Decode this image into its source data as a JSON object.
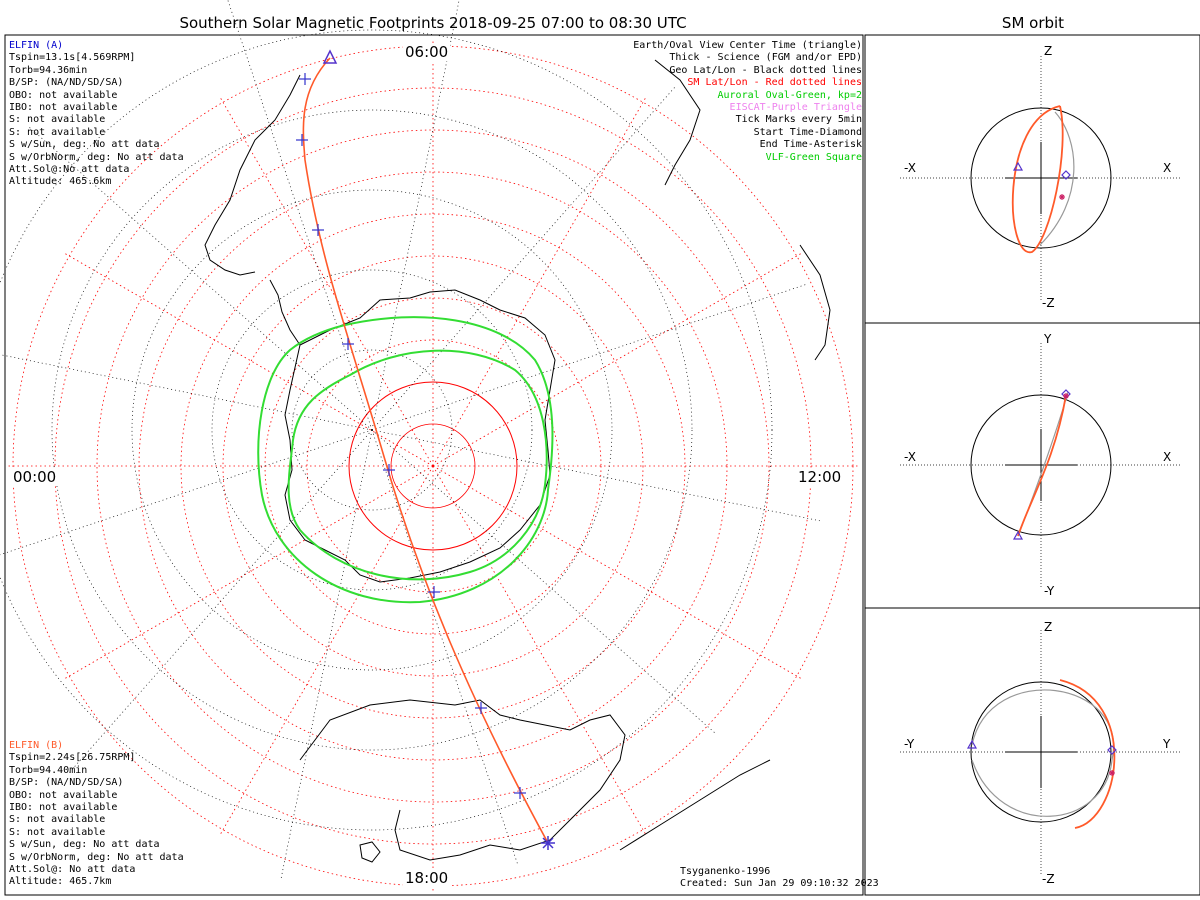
{
  "title": "Southern Solar Magnetic Footprints 2018-09-25 07:00 to 08:30 UTC",
  "orbit_title": "SM orbit",
  "clock_labels": {
    "top": "06:00",
    "left": "00:00",
    "right": "12:00",
    "bottom": "18:00"
  },
  "spacecraft_a": {
    "name": "ELFIN (A)",
    "color": "#0000cc",
    "lines": [
      "Tspin=13.1s[4.569RPM]",
      "Torb=94.36min",
      "B/SP: (NA/ND/SD/SA)",
      "OBO: not available",
      "IBO: not available",
      "S: not available",
      "S: not available",
      "S w/Sun, deg: No att data",
      "S w/OrbNorm, deg: No att data",
      "Att.Sol@:No att data",
      "Altitude: 465.6km"
    ]
  },
  "spacecraft_b": {
    "name": "ELFIN (B)",
    "color": "#ff5a2a",
    "lines": [
      "Tspin=2.24s[26.75RPM]",
      "Torb=94.40min",
      "B/SP: (NA/ND/SD/SA)",
      "OBO: not available",
      "IBO: not available",
      "S: not available",
      "S: not available",
      "S w/Sun, deg: No att data",
      "S w/OrbNorm, deg: No att data",
      "Att.Sol@: No att data",
      "Altitude: 465.7km"
    ]
  },
  "legend": [
    {
      "text": "Earth/Oval View Center Time (triangle)",
      "color": "#000000"
    },
    {
      "text": "Thick - Science (FGM and/or EPD)",
      "color": "#000000"
    },
    {
      "text": "Geo Lat/Lon - Black dotted lines",
      "color": "#000000"
    },
    {
      "text": "SM Lat/Lon - Red dotted lines",
      "color": "#ff0000"
    },
    {
      "text": "Auroral Oval-Green, kp=2",
      "color": "#00cc00"
    },
    {
      "text": "EISCAT-Purple Triangle",
      "color": "#ee82ee"
    },
    {
      "text": "Tick Marks every 5min",
      "color": "#000000"
    },
    {
      "text": "Start Time-Diamond",
      "color": "#000000"
    },
    {
      "text": "End Time-Asterisk",
      "color": "#000000"
    },
    {
      "text": "VLF-Green Square",
      "color": "#00cc00"
    }
  ],
  "credits": [
    "Tsyganenko-1996",
    "Created: Sun Jan 29 09:10:32 2023"
  ],
  "orbit_panels": [
    {
      "name": "xz",
      "axis_top": "Z",
      "axis_bottom": "-Z",
      "axis_left": "-X",
      "axis_right": "X"
    },
    {
      "name": "xy",
      "axis_top": "Y",
      "axis_bottom": "-Y",
      "axis_left": "-X",
      "axis_right": "X"
    },
    {
      "name": "yz",
      "axis_top": "Z",
      "axis_bottom": "-Z",
      "axis_left": "-Y",
      "axis_right": "Y"
    }
  ],
  "colors": {
    "track": "#ff5a2a",
    "tick": "#3333cc",
    "oval": "#33dd33",
    "sm_grid": "#ff0000",
    "geo_grid": "#000000",
    "orbit_gray": "#999999"
  }
}
